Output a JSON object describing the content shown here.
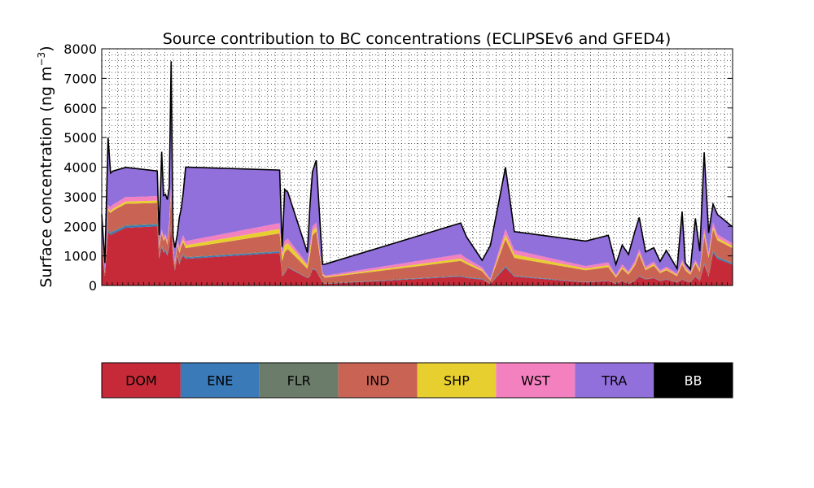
{
  "chart_data": {
    "type": "area",
    "stacked": true,
    "title": "Source contribution to BC concentrations (ECLIPSEv6 and GFED4)",
    "ylabel_main": "Surface concentration (ng m",
    "ylabel_sup": "−3",
    "ylabel_close": ")",
    "ylim": [
      0,
      8000
    ],
    "yticks": [
      0,
      1000,
      2000,
      3000,
      4000,
      5000,
      6000,
      7000,
      8000
    ],
    "grid": true,
    "legend": "bottom",
    "x_index_range": [
      0,
      100
    ],
    "x": [
      0,
      0.5,
      1,
      1.4,
      1.8,
      3.8,
      8.8,
      9.1,
      9.5,
      9.8,
      10.1,
      10.4,
      10.7,
      11,
      11.3,
      11.6,
      12,
      12.3,
      12.6,
      12.9,
      13.3,
      28.2,
      28.6,
      29,
      29.5,
      32.6,
      33,
      33.4,
      34,
      35,
      35.4,
      56.9,
      57.8,
      60.3,
      61.6,
      64,
      65.4,
      76.7,
      80.3,
      81.5,
      82.5,
      83.5,
      84.5,
      85.2,
      86.2,
      87.5,
      88.5,
      89.5,
      91.2,
      92,
      92.5,
      93.3,
      94.1,
      94.8,
      95.5,
      96.2,
      96.9,
      97.6,
      100
    ],
    "colors": {
      "DOM": "#c62a38",
      "ENE": "#3a7ab8",
      "FLR": "#6b7c6b",
      "IND": "#c96354",
      "SHP": "#e8cf30",
      "WST": "#f381bf",
      "TRA": "#9270dc",
      "BB": "#000000"
    },
    "legend_text_colors": {
      "DOM": "#000000",
      "ENE": "#000000",
      "FLR": "#000000",
      "IND": "#000000",
      "SHP": "#000000",
      "WST": "#000000",
      "TRA": "#000000",
      "BB": "#ffffff"
    },
    "series": [
      {
        "name": "DOM",
        "values": [
          1200,
          300,
          1800,
          1700,
          1750,
          1950,
          2000,
          900,
          1300,
          1100,
          1150,
          1000,
          1300,
          2000,
          900,
          500,
          1000,
          700,
          900,
          1000,
          900,
          1100,
          300,
          400,
          600,
          250,
          300,
          550,
          500,
          100,
          50,
          300,
          250,
          200,
          50,
          600,
          300,
          100,
          150,
          50,
          150,
          50,
          150,
          300,
          200,
          250,
          150,
          200,
          100,
          200,
          150,
          100,
          300,
          150,
          700,
          300,
          1100,
          900,
          700
        ]
      },
      {
        "name": "ENE",
        "values": [
          40,
          10,
          60,
          60,
          60,
          60,
          60,
          40,
          40,
          40,
          40,
          40,
          40,
          60,
          40,
          20,
          40,
          30,
          40,
          40,
          40,
          40,
          10,
          20,
          20,
          10,
          10,
          20,
          20,
          10,
          10,
          20,
          20,
          20,
          10,
          40,
          20,
          10,
          10,
          10,
          10,
          10,
          10,
          20,
          10,
          10,
          10,
          10,
          10,
          10,
          10,
          10,
          20,
          10,
          40,
          20,
          60,
          50,
          40
        ]
      },
      {
        "name": "FLR",
        "values": [
          20,
          5,
          30,
          30,
          30,
          30,
          30,
          20,
          20,
          20,
          20,
          20,
          20,
          30,
          20,
          10,
          20,
          15,
          20,
          20,
          20,
          20,
          5,
          10,
          10,
          5,
          5,
          10,
          10,
          5,
          5,
          10,
          10,
          10,
          5,
          20,
          10,
          5,
          5,
          5,
          5,
          5,
          5,
          10,
          5,
          5,
          5,
          5,
          5,
          5,
          5,
          5,
          10,
          5,
          20,
          10,
          30,
          25,
          20
        ]
      },
      {
        "name": "IND",
        "values": [
          300,
          100,
          640,
          660,
          690,
          720,
          700,
          300,
          400,
          350,
          400,
          300,
          600,
          1050,
          300,
          150,
          320,
          350,
          350,
          400,
          300,
          600,
          500,
          700,
          600,
          300,
          700,
          1100,
          1300,
          230,
          200,
          500,
          450,
          250,
          100,
          900,
          600,
          400,
          450,
          200,
          400,
          300,
          500,
          700,
          300,
          400,
          250,
          300,
          200,
          500,
          350,
          250,
          400,
          300,
          900,
          600,
          700,
          550,
          500
        ]
      },
      {
        "name": "SHP",
        "values": [
          40,
          20,
          70,
          70,
          70,
          80,
          80,
          50,
          50,
          50,
          50,
          50,
          80,
          120,
          60,
          40,
          60,
          80,
          80,
          90,
          100,
          150,
          200,
          230,
          200,
          100,
          200,
          160,
          140,
          40,
          30,
          80,
          70,
          50,
          20,
          150,
          120,
          60,
          70,
          40,
          60,
          50,
          60,
          80,
          50,
          60,
          40,
          50,
          40,
          70,
          60,
          40,
          60,
          50,
          120,
          80,
          100,
          80,
          70
        ]
      },
      {
        "name": "WST",
        "values": [
          100,
          30,
          130,
          130,
          140,
          150,
          150,
          90,
          100,
          90,
          100,
          90,
          150,
          220,
          120,
          60,
          110,
          120,
          130,
          150,
          140,
          200,
          100,
          150,
          150,
          60,
          120,
          150,
          160,
          50,
          40,
          150,
          120,
          80,
          40,
          200,
          150,
          80,
          100,
          50,
          90,
          60,
          100,
          120,
          70,
          80,
          60,
          70,
          50,
          90,
          70,
          50,
          80,
          60,
          150,
          100,
          150,
          120,
          90
        ]
      },
      {
        "name": "TRA",
        "values": [
          700,
          300,
          2270,
          1150,
          1130,
          1000,
          850,
          300,
          2610,
          1390,
          1320,
          1400,
          1130,
          4100,
          200,
          500,
          200,
          1005,
          1080,
          1400,
          2500,
          1790,
          185,
          1740,
          1570,
          385,
          1350,
          1850,
          2100,
          280,
          385,
          1050,
          730,
          240,
          1125,
          2085,
          620,
          845,
          910,
          355,
          650,
          575,
          995,
          1070,
          500,
          470,
          300,
          545,
          165,
          1625,
          115,
          95,
          1400,
          585,
          2570,
          665,
          610,
          675,
          560
        ]
      },
      {
        "name": "BB",
        "values": [
          0,
          0,
          0,
          0,
          0,
          0,
          0,
          0,
          0,
          0,
          0,
          0,
          0,
          0,
          0,
          0,
          0,
          0,
          0,
          0,
          0,
          0,
          0,
          0,
          0,
          0,
          0,
          0,
          0,
          0,
          0,
          0,
          0,
          0,
          0,
          0,
          0,
          0,
          0,
          0,
          0,
          0,
          0,
          0,
          0,
          0,
          0,
          0,
          0,
          0,
          0,
          0,
          0,
          0,
          0,
          0,
          0,
          0,
          0
        ]
      }
    ]
  }
}
